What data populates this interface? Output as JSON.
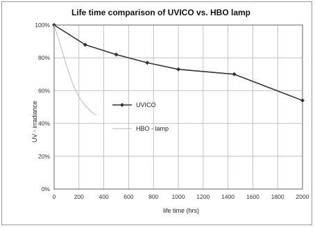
{
  "chart_data": {
    "type": "line",
    "title": "Life time comparison of UVICO vs. HBO lamp",
    "xlabel": "life time (hrs)",
    "ylabel": "UV - irradiance",
    "xlim": [
      0,
      2000
    ],
    "ylim": [
      0,
      100
    ],
    "x_ticks": [
      0,
      200,
      400,
      600,
      800,
      1000,
      1200,
      1400,
      1600,
      1800,
      2000
    ],
    "x_tick_labels": [
      "0",
      "200",
      "400",
      "600",
      "800",
      "1000",
      "1200",
      "1400",
      "1600",
      "1800",
      "2000"
    ],
    "y_ticks": [
      0,
      20,
      40,
      60,
      80,
      100
    ],
    "y_tick_labels": [
      "0%",
      "20%",
      "40%",
      "60%",
      "80%",
      "100%"
    ],
    "grid": true,
    "legend_position": "center",
    "series": [
      {
        "name": "UVICO",
        "color": "#333333",
        "marker": "diamond",
        "x": [
          0,
          250,
          500,
          750,
          1000,
          1450,
          2000
        ],
        "y": [
          100,
          88,
          82,
          77,
          73,
          70,
          54
        ]
      },
      {
        "name": "HBO - lamp",
        "color": "#c4c4c4",
        "marker": "none",
        "x": [
          0,
          50,
          100,
          150,
          200,
          250,
          300,
          340
        ],
        "y": [
          100,
          88,
          75,
          64,
          56,
          51,
          47,
          45
        ]
      }
    ]
  }
}
